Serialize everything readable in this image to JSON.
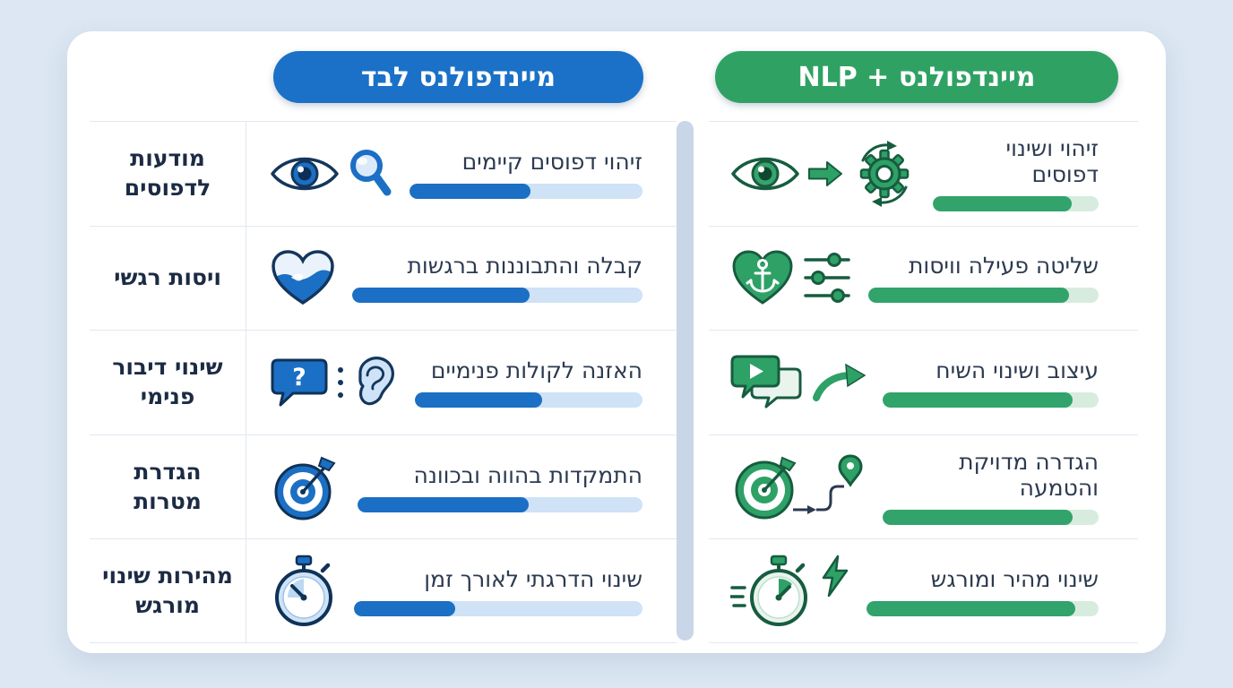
{
  "columns": {
    "alone": {
      "label": "מיינדפולנס לבד",
      "color": "#1a71c7"
    },
    "nlp": {
      "label": "מיינדפולנס + NLP",
      "color": "#2fa263"
    }
  },
  "rows": [
    {
      "category": "מודעות לדפוסים",
      "alone": {
        "text": "זיהוי דפוסים קיימים",
        "progress": 52,
        "icons": [
          "eye-icon",
          "magnifier-icon"
        ]
      },
      "nlp": {
        "text": "זיהוי ושינוי דפוסים",
        "progress": 84,
        "icons": [
          "eye-icon",
          "block-arrow-right-icon",
          "gear-cycle-icon"
        ]
      }
    },
    {
      "category": "ויסות רגשי",
      "alone": {
        "text": "קבלה והתבוננות ברגשות",
        "progress": 61,
        "icons": [
          "wave-heart-icon"
        ]
      },
      "nlp": {
        "text": "שליטה פעילה וויסות",
        "progress": 87,
        "icons": [
          "anchor-heart-icon",
          "sliders-icon"
        ]
      }
    },
    {
      "category": "שינוי דיבור פנימי",
      "alone": {
        "text": "האזנה לקולות פנימיים",
        "progress": 56,
        "icons": [
          "question-bubble-icon",
          "dots-icon",
          "ear-icon"
        ]
      },
      "nlp": {
        "text": "עיצוב ושינוי השיח",
        "progress": 88,
        "icons": [
          "play-bubbles-icon",
          "curved-arrow-icon"
        ]
      }
    },
    {
      "category": "הגדרת מטרות",
      "alone": {
        "text": "התמקדות בהווה ובכוונה",
        "progress": 60,
        "icons": [
          "target-dart-icon"
        ]
      },
      "nlp": {
        "text": "הגדרה מדויקת והטמעה",
        "progress": 88,
        "icons": [
          "target-route-pin-icon"
        ]
      }
    },
    {
      "category": "מהירות שינוי מורגש",
      "alone": {
        "text": "שינוי הדרגתי לאורך זמן",
        "progress": 35,
        "icons": [
          "stopwatch-icon"
        ]
      },
      "nlp": {
        "text": "שינוי מהיר ומורגש",
        "progress": 90,
        "icons": [
          "speed-stopwatch-icon",
          "lightning-icon"
        ]
      }
    }
  ],
  "colors": {
    "background": "#dce7f3",
    "card": "#ffffff",
    "blue_fill": "#1b6fc4",
    "blue_track": "#cfe2f6",
    "green_fill": "#31a36b",
    "green_track": "#d7ecdf",
    "divider": "#c8d6e8",
    "label_text": "#1c2b44",
    "cell_text": "#2c3a50"
  }
}
